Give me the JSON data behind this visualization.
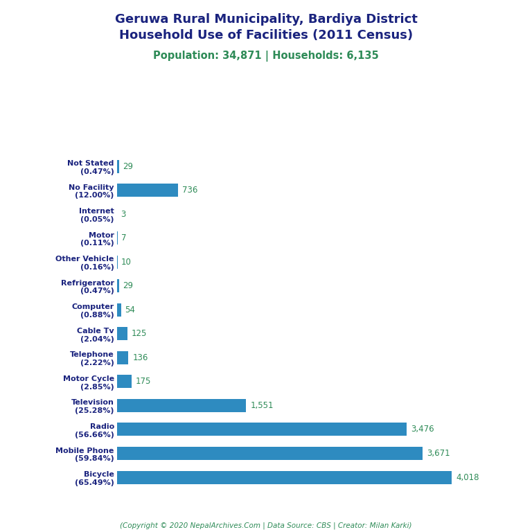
{
  "title_line1": "Geruwa Rural Municipality, Bardiya District",
  "title_line2": "Household Use of Facilities (2011 Census)",
  "subtitle": "Population: 34,871 | Households: 6,135",
  "footer": "(Copyright © 2020 NepalArchives.Com | Data Source: CBS | Creator: Milan Karki)",
  "categories": [
    "Not Stated\n(0.47%)",
    "No Facility\n(12.00%)",
    "Internet\n(0.05%)",
    "Motor\n(0.11%)",
    "Other Vehicle\n(0.16%)",
    "Refrigerator\n(0.47%)",
    "Computer\n(0.88%)",
    "Cable Tv\n(2.04%)",
    "Telephone\n(2.22%)",
    "Motor Cycle\n(2.85%)",
    "Television\n(25.28%)",
    "Radio\n(56.66%)",
    "Mobile Phone\n(59.84%)",
    "Bicycle\n(65.49%)"
  ],
  "values": [
    29,
    736,
    3,
    7,
    10,
    29,
    54,
    125,
    136,
    175,
    1551,
    3476,
    3671,
    4018
  ],
  "value_labels": [
    "29",
    "736",
    "3",
    "7",
    "10",
    "29",
    "54",
    "125",
    "136",
    "175",
    "1,551",
    "3,476",
    "3,671",
    "4,018"
  ],
  "bar_color": "#2e8bc0",
  "value_color": "#2e8b57",
  "title_color": "#1a237e",
  "subtitle_color": "#2e8b57",
  "footer_color": "#2e8b57",
  "background_color": "#ffffff",
  "xlim": [
    0,
    4600
  ],
  "title_fontsize": 13,
  "subtitle_fontsize": 10.5,
  "label_fontsize": 8,
  "value_fontsize": 8.5
}
